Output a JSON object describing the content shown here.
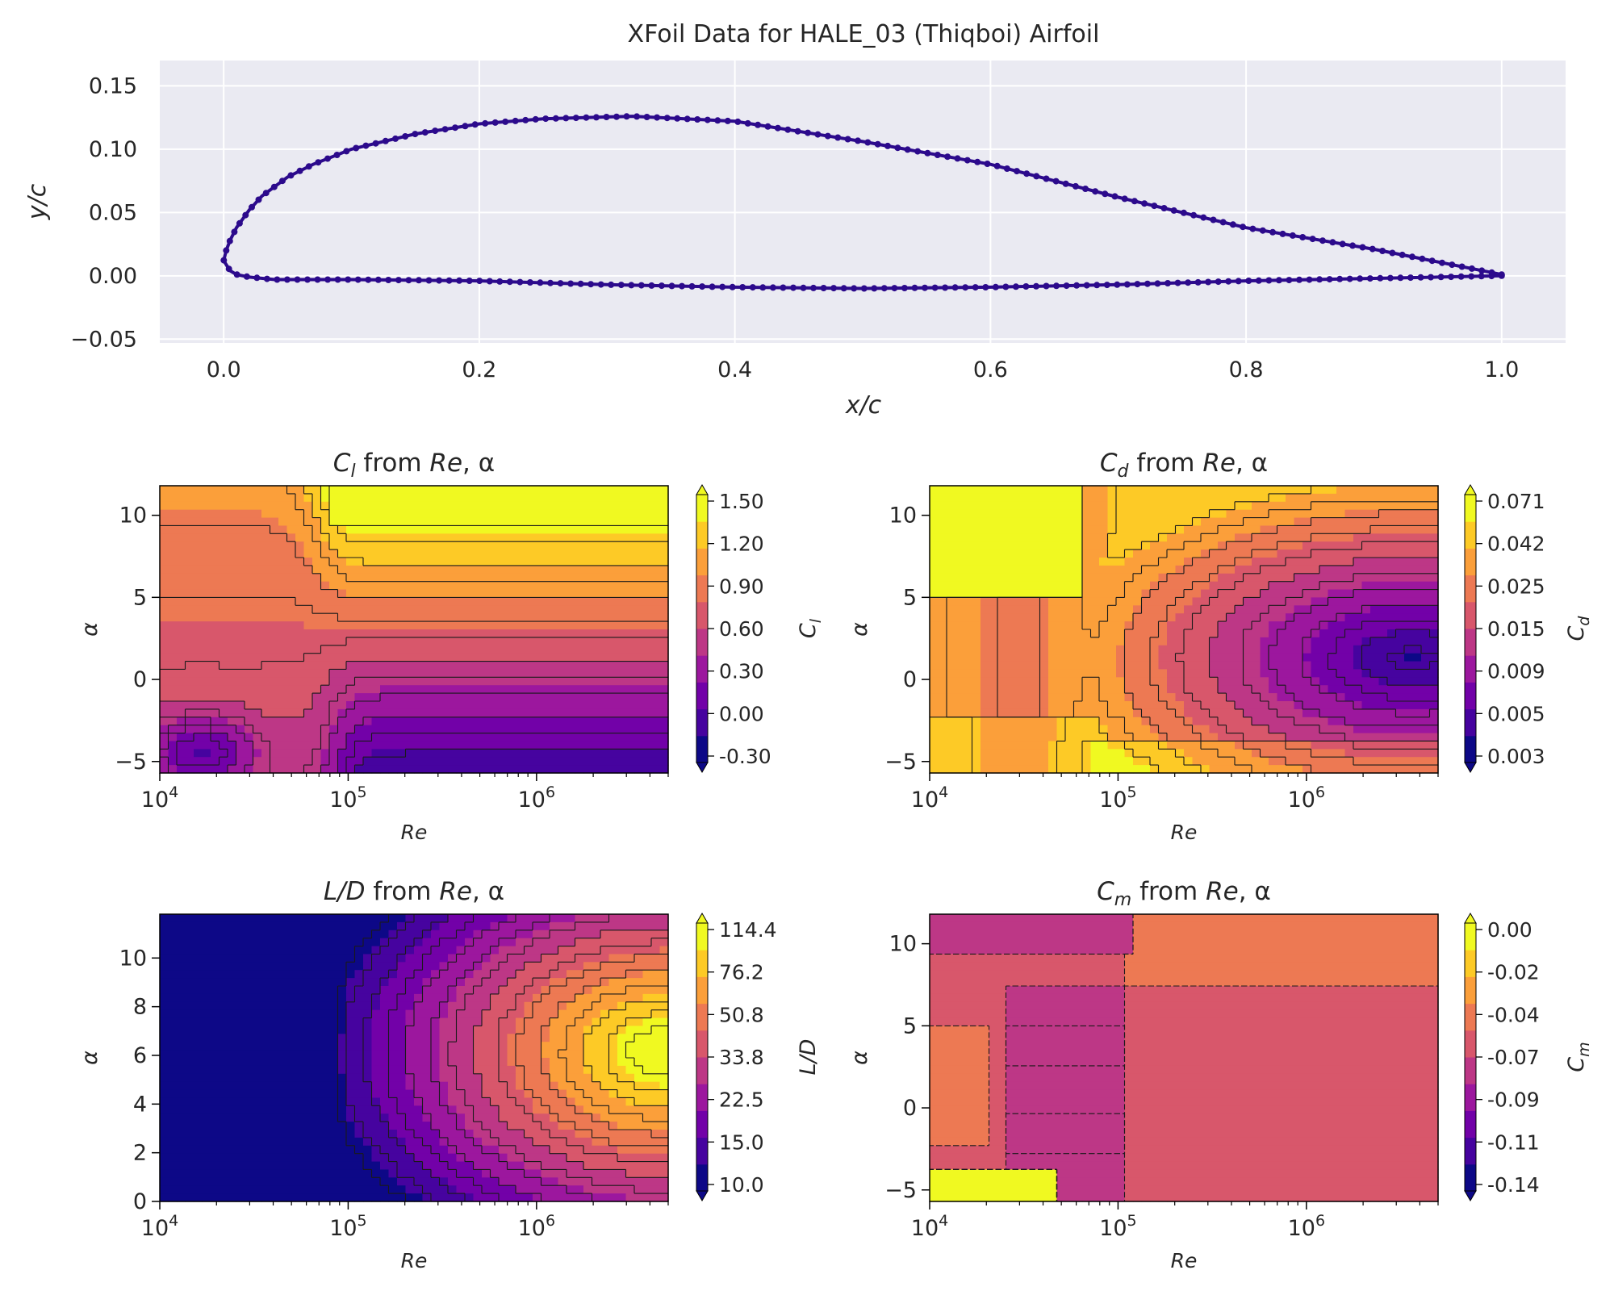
{
  "colors": {
    "line": "#2c0a8c",
    "axes_bg": "#eaeaf2",
    "grid": "#ffffff",
    "plasma": [
      "#0d0887",
      "#46039f",
      "#7201a8",
      "#9c179e",
      "#bd3786",
      "#d8576b",
      "#ed7953",
      "#fb9f3a",
      "#fdca26",
      "#f0f921"
    ]
  },
  "chart_data": [
    {
      "id": "airfoil",
      "type": "line",
      "title": "XFoil Data for HALE_03 (Thiqboi) Airfoil",
      "xlabel": "x/c",
      "ylabel": "y/c",
      "xlim": [
        -0.05,
        1.05
      ],
      "ylim": [
        -0.053,
        0.17
      ],
      "xticks": [
        0.0,
        0.2,
        0.4,
        0.6,
        0.8,
        1.0
      ],
      "xtick_labels": [
        "0.0",
        "0.2",
        "0.4",
        "0.6",
        "0.8",
        "1.0"
      ],
      "yticks": [
        -0.05,
        0.0,
        0.05,
        0.1,
        0.15
      ],
      "ytick_labels": [
        "−0.05",
        "0.00",
        "0.05",
        "0.10",
        "0.15"
      ],
      "grid": true,
      "markers": true,
      "upper_x": [
        1.0,
        0.95,
        0.9,
        0.8,
        0.7,
        0.6,
        0.5,
        0.4,
        0.32,
        0.25,
        0.2,
        0.15,
        0.1,
        0.07,
        0.05,
        0.03,
        0.02,
        0.01,
        0.005,
        0.002,
        0.0
      ],
      "upper_y": [
        0.001,
        0.011,
        0.021,
        0.038,
        0.062,
        0.088,
        0.106,
        0.122,
        0.126,
        0.124,
        0.12,
        0.112,
        0.1,
        0.088,
        0.078,
        0.063,
        0.052,
        0.038,
        0.028,
        0.02,
        0.012
      ],
      "lower_x": [
        0.0,
        0.005,
        0.01,
        0.02,
        0.04,
        0.07,
        0.1,
        0.2,
        0.3,
        0.4,
        0.5,
        0.6,
        0.7,
        0.8,
        0.9,
        0.95,
        1.0
      ],
      "lower_y": [
        0.012,
        0.004,
        0.001,
        -0.001,
        -0.003,
        -0.003,
        -0.003,
        -0.004,
        -0.007,
        -0.009,
        -0.01,
        -0.009,
        -0.007,
        -0.004,
        -0.002,
        -0.001,
        0.0
      ]
    },
    {
      "id": "cl",
      "type": "heatmap",
      "title": "C_l from Re, α",
      "title_parts": [
        "C",
        "l",
        " from ",
        "Re",
        ", α"
      ],
      "xlabel": "Re",
      "ylabel": "α",
      "xlim": [
        10000,
        5000000
      ],
      "ylim": [
        -5.7,
        11.8
      ],
      "yticks": [
        -5,
        0,
        5,
        10
      ],
      "colorbar_label": "C_l",
      "colorbar_label_parts": [
        "C",
        "l"
      ],
      "colorbar_ticks": [
        "1.50",
        "1.20",
        "0.90",
        "0.60",
        "0.30",
        "0.00",
        "-0.30"
      ],
      "colorbar_tick_values": [
        1.5,
        1.2,
        0.9,
        0.6,
        0.3,
        0.0,
        -0.3
      ],
      "colorbar_range": [
        -0.45,
        1.5
      ]
    },
    {
      "id": "cd",
      "type": "heatmap",
      "title": "C_d from Re, α",
      "title_parts": [
        "C",
        "d",
        " from ",
        "Re",
        ", α"
      ],
      "xlabel": "Re",
      "ylabel": "α",
      "xlim": [
        10000,
        5000000
      ],
      "ylim": [
        -5.7,
        11.8
      ],
      "yticks": [
        -5,
        0,
        5,
        10
      ],
      "colorbar_label": "C_d",
      "colorbar_label_parts": [
        "C",
        "d"
      ],
      "colorbar_ticks": [
        "0.071",
        "0.042",
        "0.025",
        "0.015",
        "0.009",
        "0.005",
        "0.003"
      ],
      "colorbar_tick_values": [
        0.071,
        0.042,
        0.025,
        0.015,
        0.009,
        0.005,
        0.003
      ]
    },
    {
      "id": "ld",
      "type": "heatmap",
      "title": "L/D from Re, α",
      "title_parts": [
        "L/D",
        "",
        " from ",
        "Re",
        ", α"
      ],
      "xlabel": "Re",
      "ylabel": "α",
      "xlim": [
        10000,
        5000000
      ],
      "ylim": [
        0,
        11.8
      ],
      "yticks": [
        0,
        2,
        4,
        6,
        8,
        10
      ],
      "colorbar_label": "L/D",
      "colorbar_label_parts": [
        "L/D",
        ""
      ],
      "colorbar_ticks": [
        "114.4",
        "76.2",
        "50.8",
        "33.8",
        "22.5",
        "15.0",
        "10.0"
      ],
      "colorbar_tick_values": [
        114.4,
        76.2,
        50.8,
        33.8,
        22.5,
        15.0,
        10.0
      ]
    },
    {
      "id": "cm",
      "type": "heatmap",
      "title": "C_m from Re, α",
      "title_parts": [
        "C",
        "m",
        " from ",
        "Re",
        ", α"
      ],
      "xlabel": "Re",
      "ylabel": "α",
      "xlim": [
        10000,
        5000000
      ],
      "ylim": [
        -5.7,
        11.8
      ],
      "yticks": [
        -5,
        0,
        5,
        10
      ],
      "colorbar_label": "C_m",
      "colorbar_label_parts": [
        "C",
        "m"
      ],
      "colorbar_ticks": [
        "0.00",
        "-0.02",
        "-0.04",
        "-0.07",
        "-0.09",
        "-0.11",
        "-0.14"
      ],
      "colorbar_tick_values": [
        0.0,
        -0.02,
        -0.04,
        -0.07,
        -0.09,
        -0.11,
        -0.14
      ]
    }
  ]
}
